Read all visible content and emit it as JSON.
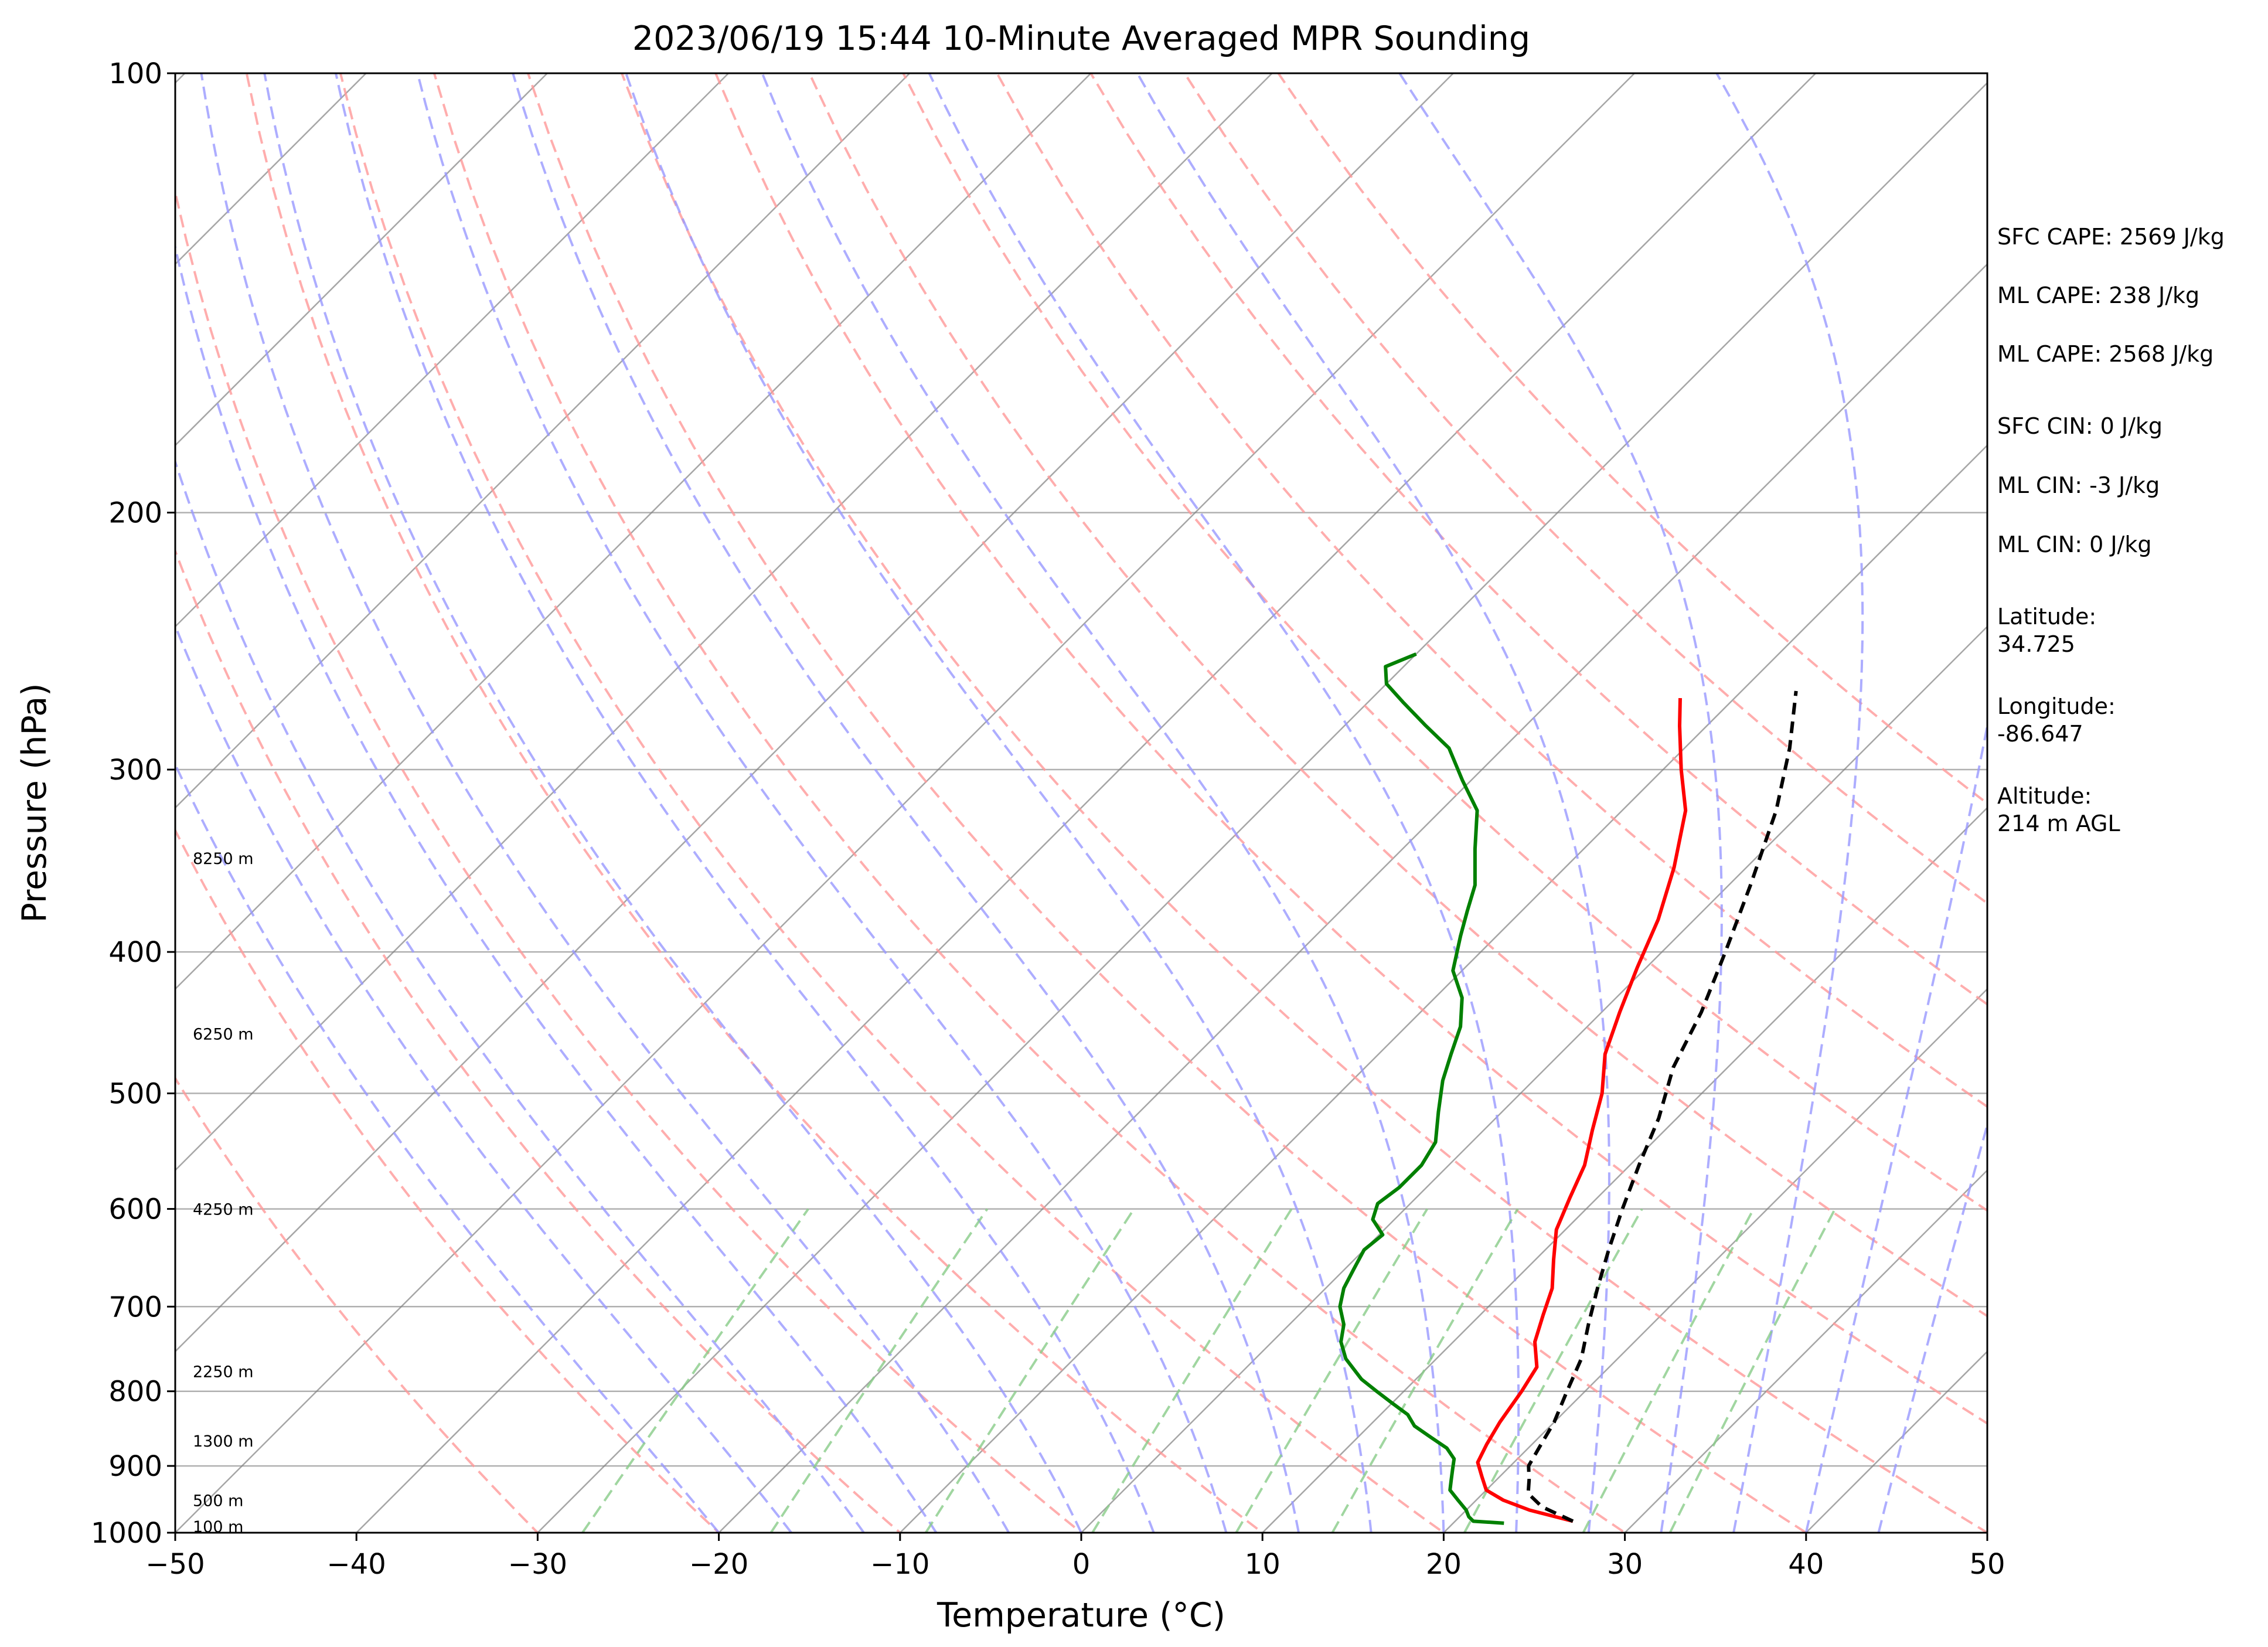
{
  "chart_data": {
    "type": "line",
    "title": "2023/06/19 15:44 10-Minute Averaged MPR Sounding",
    "xlabel": "Temperature (°C)",
    "ylabel": "Pressure (hPa)",
    "xlim": [
      -50,
      50
    ],
    "ylim": [
      1000,
      100
    ],
    "y_scale": "log",
    "skew": "skew-T log-P",
    "x_ticks": [
      "−50",
      "−40",
      "−30",
      "−20",
      "−10",
      "0",
      "10",
      "20",
      "30",
      "40",
      "50"
    ],
    "y_ticks": [
      "100",
      "200",
      "300",
      "400",
      "500",
      "600",
      "700",
      "800",
      "900",
      "1000"
    ],
    "grid": true,
    "series": [
      {
        "color": "#ff0000",
        "style": "solid",
        "points": [
          [
            982,
            26.5
          ],
          [
            965,
            23.5
          ],
          [
            950,
            21.5
          ],
          [
            935,
            20
          ],
          [
            915,
            19
          ],
          [
            895,
            18
          ],
          [
            870,
            17.5
          ],
          [
            840,
            17
          ],
          [
            800,
            16.5
          ],
          [
            770,
            16
          ],
          [
            740,
            14.5
          ],
          [
            710,
            13.5
          ],
          [
            680,
            12.5
          ],
          [
            650,
            11
          ],
          [
            620,
            9.5
          ],
          [
            590,
            8.5
          ],
          [
            560,
            7.5
          ],
          [
            530,
            6
          ],
          [
            500,
            4.5
          ],
          [
            470,
            2.5
          ],
          [
            440,
            1
          ],
          [
            410,
            -0.5
          ],
          [
            380,
            -2
          ],
          [
            350,
            -4
          ],
          [
            320,
            -6.5
          ],
          [
            300,
            -9
          ],
          [
            280,
            -11.5
          ],
          [
            268,
            -13
          ]
        ]
      },
      {
        "color": "#008000",
        "style": "solid",
        "points": [
          [
            985,
            22.8
          ],
          [
            982,
            21
          ],
          [
            975,
            20.5
          ],
          [
            965,
            20
          ],
          [
            950,
            19
          ],
          [
            935,
            18
          ],
          [
            920,
            17.5
          ],
          [
            905,
            17
          ],
          [
            890,
            16.5
          ],
          [
            875,
            15.5
          ],
          [
            860,
            14
          ],
          [
            845,
            12.5
          ],
          [
            830,
            11.5
          ],
          [
            815,
            10
          ],
          [
            800,
            8.5
          ],
          [
            785,
            7
          ],
          [
            760,
            5
          ],
          [
            740,
            3.8
          ],
          [
            720,
            3
          ],
          [
            700,
            1.8
          ],
          [
            680,
            1
          ],
          [
            660,
            0.5
          ],
          [
            640,
            0
          ],
          [
            625,
            0.2
          ],
          [
            610,
            -1.2
          ],
          [
            595,
            -1.8
          ],
          [
            580,
            -1.5
          ],
          [
            560,
            -1.5
          ],
          [
            540,
            -2
          ],
          [
            515,
            -3.5
          ],
          [
            490,
            -5
          ],
          [
            470,
            -6
          ],
          [
            450,
            -7
          ],
          [
            430,
            -8.5
          ],
          [
            412,
            -10.5
          ],
          [
            390,
            -12
          ],
          [
            375,
            -13
          ],
          [
            360,
            -14
          ],
          [
            340,
            -16
          ],
          [
            320,
            -18
          ],
          [
            305,
            -20.5
          ],
          [
            290,
            -23
          ],
          [
            280,
            -25.5
          ],
          [
            270,
            -28
          ],
          [
            262,
            -30
          ],
          [
            255,
            -31
          ],
          [
            250,
            -30
          ]
        ]
      },
      {
        "color": "#000000",
        "style": "dashed",
        "points": [
          [
            982,
            26.5
          ],
          [
            960,
            24
          ],
          [
            940,
            22.5
          ],
          [
            920,
            21.8
          ],
          [
            900,
            21
          ],
          [
            870,
            20.5
          ],
          [
            840,
            20
          ],
          [
            800,
            19
          ],
          [
            760,
            18
          ],
          [
            720,
            16.5
          ],
          [
            680,
            15
          ],
          [
            640,
            13.5
          ],
          [
            600,
            12
          ],
          [
            560,
            10.5
          ],
          [
            520,
            9
          ],
          [
            480,
            7
          ],
          [
            440,
            5.5
          ],
          [
            400,
            3.5
          ],
          [
            360,
            1.2
          ],
          [
            320,
            -1.5
          ],
          [
            290,
            -4.2
          ],
          [
            265,
            -7
          ]
        ]
      }
    ],
    "height_labels": [
      {
        "label": "100 m",
        "p": 990
      },
      {
        "label": "500 m",
        "p": 950
      },
      {
        "label": "1300 m",
        "p": 865
      },
      {
        "label": "2250 m",
        "p": 775
      },
      {
        "label": "4250 m",
        "p": 600
      },
      {
        "label": "6250 m",
        "p": 455
      },
      {
        "label": "8250 m",
        "p": 345
      }
    ],
    "side_info": [
      "SFC CAPE: 2569 J/kg",
      "ML CAPE: 238 J/kg",
      "ML CAPE: 2568 J/kg",
      "SFC CIN: 0 J/kg",
      "ML CIN: -3 J/kg",
      "ML CIN: 0 J/kg",
      "Latitude:",
      "34.725",
      "Longitude:",
      "-86.647",
      "Altitude:",
      "214 m AGL"
    ],
    "background_lines": {
      "dry_adiabats_color": "#ff9999",
      "moist_adiabats_color": "#9999ff",
      "mixing_ratio_color": "#88cc88",
      "isotherm_color": "#808080"
    }
  }
}
